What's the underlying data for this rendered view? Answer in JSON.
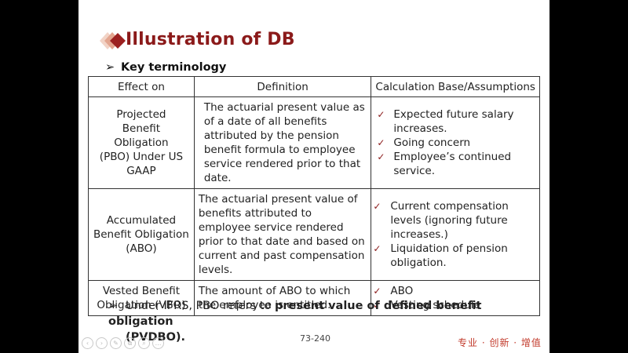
{
  "slide": {
    "title": "Illustration of DB",
    "bullet_arrow": "➢",
    "key_terminology": "Key terminology",
    "table": {
      "headers": [
        "Effect on",
        "Definition",
        "Calculation Base/Assumptions"
      ],
      "rows": [
        {
          "effect": "Projected Benefit Obligation (PBO) Under US GAAP",
          "definition": "The actuarial present value as of a date of all benefits attributed by the pension benefit formula to employee service rendered prior to that date.",
          "assumptions": [
            "Expected future salary increases.",
            "Going concern",
            "Employee’s continued service."
          ]
        },
        {
          "effect": "Accumulated Benefit Obligation (ABO)",
          "definition": "The actuarial present value of benefits attributed to employee service rendered prior to that date and based on current and past compensation levels.",
          "assumptions": [
            "Current compensation levels (ignoring future increases.)",
            "Liquidation of pension obligation."
          ]
        },
        {
          "effect": "Vested Benefit Obligation (VBO)",
          "definition": "The amount of ABO to which the employee is entitled.",
          "assumptions": [
            "ABO",
            "Vesting schedule"
          ]
        }
      ]
    },
    "check_glyph": "✓",
    "ifrs_note": {
      "prefix": "Under IFRS, PBO refers to ",
      "bold_line1": "present value of defined benefit obligation",
      "bold_line2": "(PVDBO)."
    },
    "page_number": "73-240",
    "slogan": "专业 · 创新 · 增值"
  },
  "nav_icons": [
    "‹",
    "›",
    "✎",
    "⧉",
    "⌕",
    "…"
  ],
  "colors": {
    "accent": "#8b1a1a",
    "slogan": "#c23a2b",
    "logo_light": "#e8b9a7",
    "logo_dark": "#9c2020"
  }
}
